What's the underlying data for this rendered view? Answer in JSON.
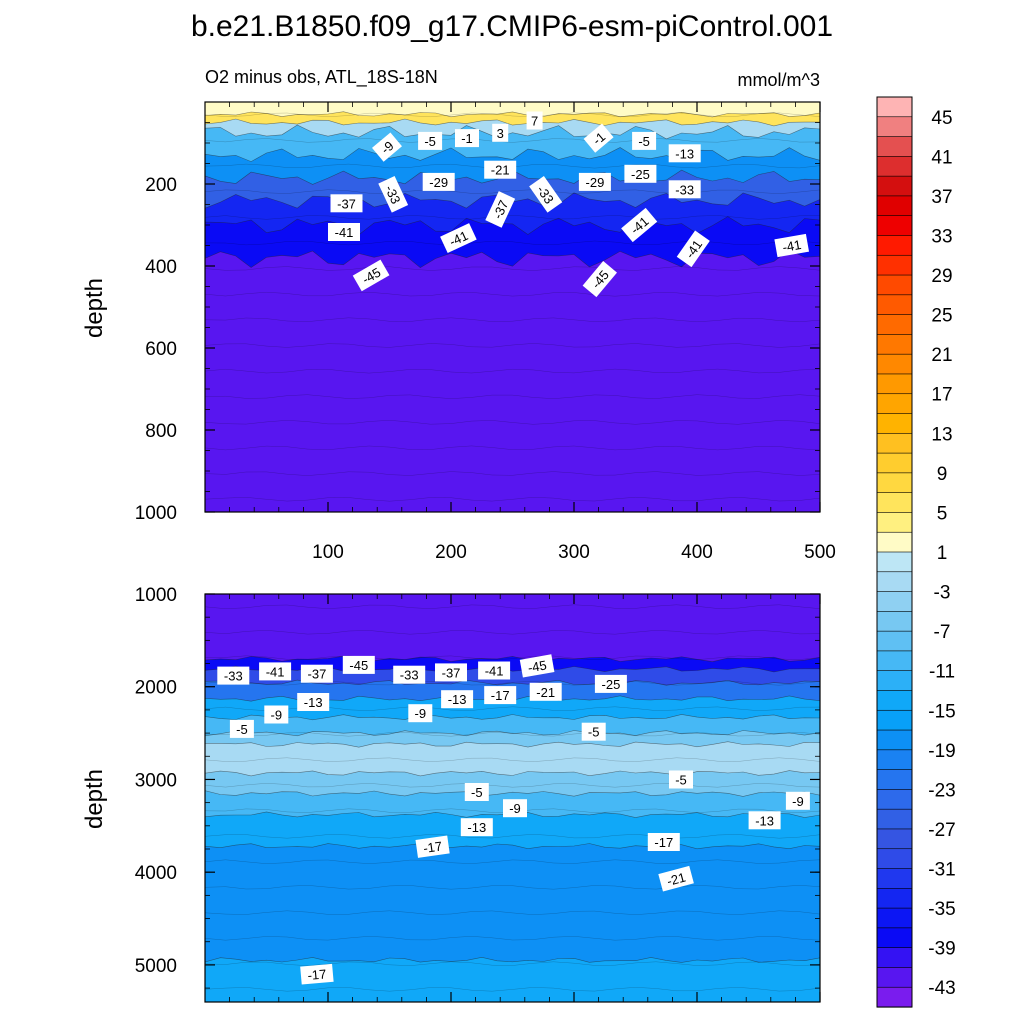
{
  "title": "b.e21.B1850.f09_g17.CMIP6-esm-piControl.001",
  "subtitle_left": "O2 minus obs, ATL_18S-18N",
  "subtitle_right": "mmol/m^3",
  "colors": {
    "purple": "#7d22ef",
    "deep_blue": "#0b16ef",
    "blue": "#1e46ef",
    "mid_blue": "#2b7bf0",
    "sky": "#0ea1f7",
    "light_sky": "#4fc4f5",
    "pale": "#bfe5f6",
    "pale_yellow": "#fdf7c0",
    "yellow": "#fbe35a",
    "gold": "#f5c518"
  },
  "chart_data": [
    {
      "type": "contour",
      "panel": "upper",
      "ylabel": "depth",
      "ylim": [
        1000,
        0
      ],
      "xlim": [
        0,
        500
      ],
      "y_ticks": [
        "200",
        "400",
        "600",
        "800",
        "1000"
      ],
      "y_tick_values": [
        200,
        400,
        600,
        800,
        1000
      ],
      "x_ticks": [
        "100",
        "200",
        "300",
        "400",
        "500"
      ],
      "x_tick_values": [
        100,
        200,
        300,
        400,
        500
      ],
      "bands": [
        {
          "level": 1,
          "top": 0,
          "bottom": 30
        },
        {
          "level": 5,
          "top": 30,
          "bottom": 50
        },
        {
          "level": -3,
          "top": 50,
          "bottom": 75
        },
        {
          "level": -11,
          "top": 75,
          "bottom": 130
        },
        {
          "level": -19,
          "top": 130,
          "bottom": 185
        },
        {
          "level": -27,
          "top": 185,
          "bottom": 240
        },
        {
          "level": -35,
          "top": 240,
          "bottom": 300
        },
        {
          "level": -39,
          "top": 300,
          "bottom": 380
        },
        {
          "level": -43,
          "top": 380,
          "bottom": 1000
        }
      ],
      "contour_labels": [
        {
          "text": "7",
          "x": 268,
          "y": 45,
          "rot": 0
        },
        {
          "text": "3",
          "x": 240,
          "y": 75,
          "rot": 0
        },
        {
          "text": "-1",
          "x": 213,
          "y": 88,
          "rot": 0
        },
        {
          "text": "-5",
          "x": 183,
          "y": 95,
          "rot": 0
        },
        {
          "text": "-9",
          "x": 148,
          "y": 110,
          "rot": -40
        },
        {
          "text": "-1",
          "x": 320,
          "y": 88,
          "rot": -40
        },
        {
          "text": "-5",
          "x": 357,
          "y": 95,
          "rot": 0
        },
        {
          "text": "-13",
          "x": 390,
          "y": 125,
          "rot": 0
        },
        {
          "text": "-21",
          "x": 240,
          "y": 165,
          "rot": 0
        },
        {
          "text": "-25",
          "x": 354,
          "y": 175,
          "rot": 0
        },
        {
          "text": "-29",
          "x": 190,
          "y": 195,
          "rot": 0
        },
        {
          "text": "-29",
          "x": 317,
          "y": 195,
          "rot": 0
        },
        {
          "text": "-33",
          "x": 390,
          "y": 213,
          "rot": 0
        },
        {
          "text": "-33",
          "x": 153,
          "y": 225,
          "rot": 65
        },
        {
          "text": "-33",
          "x": 277,
          "y": 225,
          "rot": 55
        },
        {
          "text": "-37",
          "x": 115,
          "y": 247,
          "rot": 0
        },
        {
          "text": "-37",
          "x": 240,
          "y": 262,
          "rot": -65
        },
        {
          "text": "-41",
          "x": 113,
          "y": 317,
          "rot": 0
        },
        {
          "text": "-41",
          "x": 206,
          "y": 332,
          "rot": -25
        },
        {
          "text": "-41",
          "x": 353,
          "y": 300,
          "rot": -40
        },
        {
          "text": "-41",
          "x": 397,
          "y": 358,
          "rot": -55
        },
        {
          "text": "-41",
          "x": 477,
          "y": 350,
          "rot": -10
        },
        {
          "text": "-45",
          "x": 135,
          "y": 423,
          "rot": -30
        },
        {
          "text": "-45",
          "x": 321,
          "y": 432,
          "rot": -50
        }
      ]
    },
    {
      "type": "contour",
      "panel": "lower",
      "ylabel": "depth",
      "ylim": [
        5400,
        1000
      ],
      "xlim": [
        0,
        500
      ],
      "y_ticks": [
        "1000",
        "2000",
        "3000",
        "4000",
        "5000"
      ],
      "y_tick_values": [
        1000,
        2000,
        3000,
        4000,
        5000
      ],
      "bands": [
        {
          "level": -43,
          "top": 1000,
          "bottom": 1700
        },
        {
          "level": -39,
          "top": 1700,
          "bottom": 1810
        },
        {
          "level": -31,
          "top": 1810,
          "bottom": 1960
        },
        {
          "level": -23,
          "top": 1960,
          "bottom": 2130
        },
        {
          "level": -15,
          "top": 2130,
          "bottom": 2330
        },
        {
          "level": -11,
          "top": 2330,
          "bottom": 2500
        },
        {
          "level": -7,
          "top": 2500,
          "bottom": 2620
        },
        {
          "level": -3,
          "top": 2620,
          "bottom": 2930
        },
        {
          "level": -7,
          "top": 2930,
          "bottom": 3150
        },
        {
          "level": -11,
          "top": 3150,
          "bottom": 3380
        },
        {
          "level": -15,
          "top": 3380,
          "bottom": 3720
        },
        {
          "level": -19,
          "top": 3720,
          "bottom": 4950
        },
        {
          "level": -15,
          "top": 4950,
          "bottom": 5400
        }
      ],
      "contour_labels": [
        {
          "text": "-33",
          "x": 23,
          "y": 1880,
          "rot": 0
        },
        {
          "text": "-41",
          "x": 57,
          "y": 1835,
          "rot": 0
        },
        {
          "text": "-37",
          "x": 91,
          "y": 1860,
          "rot": 0
        },
        {
          "text": "-45",
          "x": 125,
          "y": 1765,
          "rot": 0
        },
        {
          "text": "-33",
          "x": 166,
          "y": 1870,
          "rot": 0
        },
        {
          "text": "-37",
          "x": 200,
          "y": 1845,
          "rot": 0
        },
        {
          "text": "-41",
          "x": 235,
          "y": 1825,
          "rot": 0
        },
        {
          "text": "-45",
          "x": 270,
          "y": 1775,
          "rot": -10
        },
        {
          "text": "-21",
          "x": 277,
          "y": 2055,
          "rot": 0
        },
        {
          "text": "-25",
          "x": 330,
          "y": 1970,
          "rot": 0
        },
        {
          "text": "-17",
          "x": 240,
          "y": 2090,
          "rot": 0
        },
        {
          "text": "-13",
          "x": 205,
          "y": 2135,
          "rot": 0
        },
        {
          "text": "-13",
          "x": 88,
          "y": 2165,
          "rot": 0
        },
        {
          "text": "-9",
          "x": 58,
          "y": 2300,
          "rot": 0
        },
        {
          "text": "-9",
          "x": 175,
          "y": 2285,
          "rot": 0
        },
        {
          "text": "-5",
          "x": 30,
          "y": 2455,
          "rot": 0
        },
        {
          "text": "-5",
          "x": 316,
          "y": 2485,
          "rot": 0
        },
        {
          "text": "-5",
          "x": 221,
          "y": 3135,
          "rot": 0
        },
        {
          "text": "-5",
          "x": 387,
          "y": 3000,
          "rot": 0
        },
        {
          "text": "-9",
          "x": 252,
          "y": 3310,
          "rot": 0
        },
        {
          "text": "-9",
          "x": 482,
          "y": 3230,
          "rot": 0
        },
        {
          "text": "-13",
          "x": 221,
          "y": 3515,
          "rot": 0
        },
        {
          "text": "-13",
          "x": 455,
          "y": 3440,
          "rot": 0
        },
        {
          "text": "-17",
          "x": 185,
          "y": 3725,
          "rot": -8
        },
        {
          "text": "-17",
          "x": 373,
          "y": 3675,
          "rot": 0
        },
        {
          "text": "-21",
          "x": 383,
          "y": 4070,
          "rot": -15
        },
        {
          "text": "-17",
          "x": 91,
          "y": 5100,
          "rot": -5
        }
      ]
    }
  ],
  "colorbar": {
    "levels": [
      45,
      43,
      41,
      39,
      37,
      35,
      33,
      31,
      29,
      27,
      25,
      23,
      21,
      19,
      17,
      15,
      13,
      11,
      9,
      7,
      5,
      3,
      1,
      -1,
      -3,
      -5,
      -7,
      -9,
      -11,
      -13,
      -15,
      -17,
      -19,
      -21,
      -23,
      -25,
      -27,
      -29,
      -31,
      -33,
      -35,
      -37,
      -39,
      -41,
      -43,
      -45
    ],
    "colors": [
      "#feb4b4",
      "#f08080",
      "#e45050",
      "#dd2e2e",
      "#d40f0f",
      "#e00000",
      "#ee0000",
      "#ff1a00",
      "#ff3000",
      "#ff4a00",
      "#ff5a00",
      "#ff6a00",
      "#ff7800",
      "#ff8800",
      "#ff9900",
      "#ffa500",
      "#ffb300",
      "#ffc020",
      "#ffcd2e",
      "#ffd840",
      "#ffe45c",
      "#fff080",
      "#fffbc6",
      "#bde6f5",
      "#a8daf3",
      "#8fd0f2",
      "#77c8f2",
      "#5fc0f3",
      "#46b8f5",
      "#2cb0f7",
      "#10a8f8",
      "#08a0f8",
      "#0d90f5",
      "#1a82f2",
      "#2575ef",
      "#2d6aeb",
      "#3160e5",
      "#3555e2",
      "#2f4be8",
      "#2038ef",
      "#1426f2",
      "#0c16f4",
      "#0a0af5",
      "#3412f3",
      "#5816f0",
      "#7a1cee"
    ],
    "labels": [
      "45",
      "41",
      "37",
      "33",
      "29",
      "25",
      "21",
      "17",
      "13",
      "9",
      "5",
      "1",
      "-3",
      "-7",
      "-11",
      "-15",
      "-19",
      "-23",
      "-27",
      "-31",
      "-35",
      "-39",
      "-43"
    ]
  }
}
